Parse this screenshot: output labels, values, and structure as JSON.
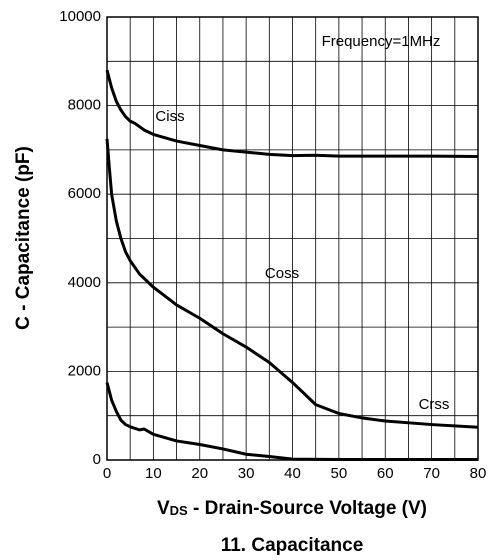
{
  "chart_data": {
    "type": "line",
    "title": "11. Capacitance",
    "ylabel": "C - Capacitance (pF)",
    "xlabel": {
      "main": "V",
      "sub": "DS",
      "rest": " - Drain-Source Voltage (V)"
    },
    "annotation": "Frequency=1MHz",
    "xlim": [
      0,
      80
    ],
    "ylim": [
      0,
      10000
    ],
    "xticks": [
      0,
      10,
      20,
      30,
      40,
      50,
      60,
      70,
      80
    ],
    "yticks": [
      0,
      2000,
      4000,
      6000,
      8000,
      10000
    ],
    "xminor": [
      5,
      15,
      25,
      35,
      45,
      55,
      65,
      75
    ],
    "yminor": [
      1000,
      3000,
      5000,
      7000,
      9000
    ],
    "grid": true,
    "series": [
      {
        "name": "Ciss",
        "color": "#000000",
        "x": [
          0,
          1,
          2,
          3,
          4,
          5,
          6,
          8,
          10,
          15,
          20,
          25,
          30,
          35,
          40,
          45,
          50,
          60,
          70,
          80
        ],
        "values": [
          8800,
          8400,
          8100,
          7900,
          7750,
          7650,
          7600,
          7450,
          7350,
          7200,
          7100,
          7000,
          6950,
          6900,
          6870,
          6880,
          6860,
          6860,
          6860,
          6850
        ]
      },
      {
        "name": "Coss",
        "color": "#000000",
        "x": [
          0,
          0.5,
          1,
          2,
          3,
          4,
          5,
          7,
          10,
          15,
          20,
          25,
          30,
          35,
          40,
          45,
          50,
          55,
          60,
          70,
          80
        ],
        "values": [
          7250,
          6600,
          6000,
          5400,
          5000,
          4700,
          4500,
          4200,
          3900,
          3500,
          3200,
          2850,
          2550,
          2200,
          1750,
          1250,
          1050,
          950,
          880,
          800,
          740
        ]
      },
      {
        "name": "Crss",
        "color": "#000000",
        "x": [
          0,
          1,
          2,
          3,
          4,
          5,
          7,
          8,
          10,
          15,
          20,
          25,
          30,
          35,
          40,
          50,
          60,
          80
        ],
        "values": [
          1750,
          1350,
          1100,
          900,
          800,
          750,
          680,
          700,
          580,
          430,
          350,
          250,
          130,
          80,
          20,
          10,
          10,
          10
        ]
      }
    ]
  }
}
